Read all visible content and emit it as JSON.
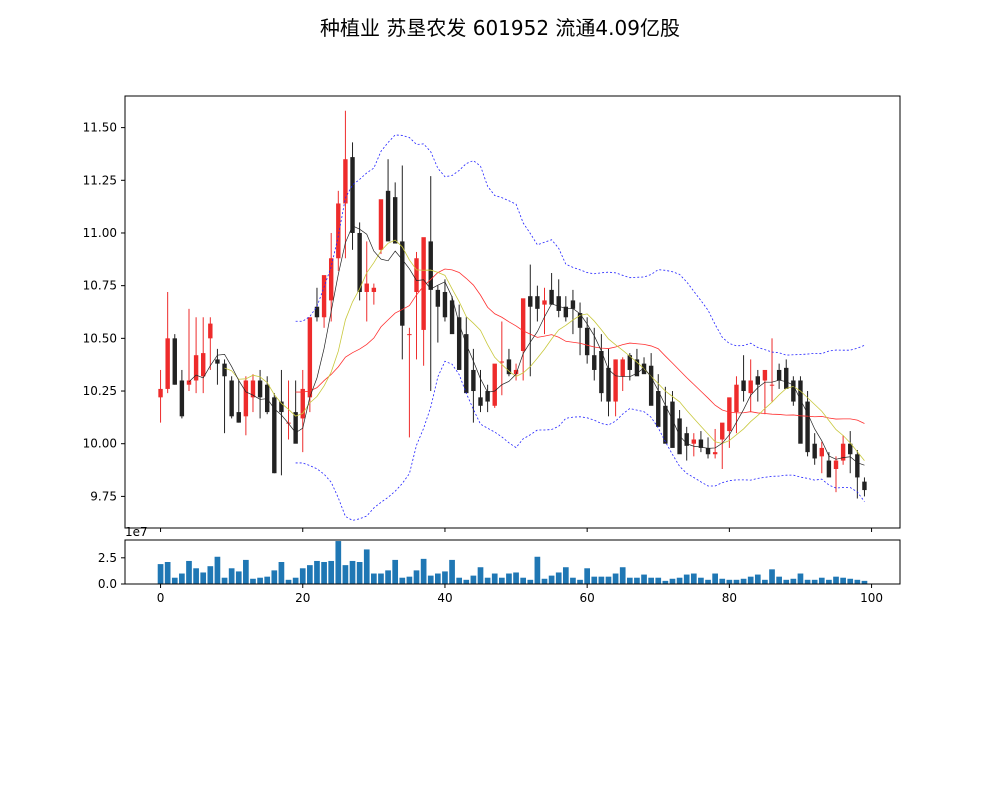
{
  "chart_data": {
    "type": "candlestick",
    "title": "种植业 苏垦农发 601952 流通4.09亿股",
    "colors": {
      "up": "#ee2b2b",
      "down": "#222222",
      "ma5": "#222222",
      "ma10": "#c8c83c",
      "ma20": "#ff3030",
      "boll": "#2222ff",
      "volume": "#1f77b4"
    },
    "price_axis": {
      "ylim": [
        9.6,
        11.65
      ],
      "ticks": [
        9.75,
        10.0,
        10.25,
        10.5,
        10.75,
        11.0,
        11.25,
        11.5
      ],
      "tick_labels": [
        "9.75",
        "10.00",
        "10.25",
        "10.50",
        "10.75",
        "11.00",
        "11.25",
        "11.50"
      ]
    },
    "x_axis": {
      "xlim": [
        -5,
        104
      ],
      "ticks": [
        0,
        20,
        40,
        60,
        80,
        100
      ],
      "tick_labels": [
        "0",
        "20",
        "40",
        "60",
        "80",
        "100"
      ]
    },
    "volume_axis": {
      "ylim": [
        0,
        4.2
      ],
      "ticks": [
        0,
        2.5
      ],
      "tick_labels": [
        "0.0",
        "2.5"
      ],
      "offset_label": "1e7"
    },
    "candles": {
      "open": [
        10.22,
        10.26,
        10.5,
        10.3,
        10.28,
        10.3,
        10.32,
        10.5,
        10.4,
        10.38,
        10.3,
        10.15,
        10.13,
        10.22,
        10.3,
        10.28,
        10.22,
        10.2,
        10.1,
        10.15,
        10.12,
        10.22,
        10.65,
        10.6,
        10.68,
        10.88,
        11.14,
        11.36,
        11.0,
        10.72,
        10.72,
        10.92,
        11.2,
        11.17,
        10.96,
        10.52,
        10.72,
        10.54,
        10.96,
        10.73,
        10.72,
        10.68,
        10.6,
        10.52,
        10.35,
        10.22,
        10.25,
        10.18,
        10.39,
        10.4,
        10.33,
        10.44,
        10.7,
        10.7,
        10.66,
        10.73,
        10.7,
        10.65,
        10.68,
        10.62,
        10.55,
        10.42,
        10.44,
        10.36,
        10.2,
        10.32,
        10.42,
        10.4,
        10.38,
        10.37,
        10.25,
        10.18,
        10.2,
        10.12,
        10.05,
        10.0,
        10.02,
        9.98,
        9.95,
        10.02,
        10.06,
        10.15,
        10.3,
        10.24,
        10.32,
        10.3,
        10.28,
        10.35,
        10.36,
        10.3,
        10.3,
        10.2,
        10.0,
        9.94,
        9.92,
        9.88,
        9.92,
        10.0,
        9.95,
        9.82
      ],
      "high": [
        10.35,
        10.72,
        10.52,
        10.35,
        10.64,
        10.6,
        10.6,
        10.6,
        10.45,
        10.4,
        10.32,
        10.3,
        10.32,
        10.33,
        10.35,
        10.32,
        10.24,
        10.35,
        10.3,
        10.3,
        10.35,
        10.4,
        10.74,
        10.72,
        11.0,
        11.2,
        11.58,
        11.43,
        11.05,
        10.96,
        10.76,
        11.0,
        11.35,
        11.24,
        11.32,
        10.55,
        10.91,
        10.9,
        11.27,
        10.75,
        10.78,
        10.7,
        10.66,
        10.6,
        10.45,
        10.35,
        10.28,
        10.25,
        10.58,
        10.45,
        10.38,
        10.5,
        10.85,
        10.75,
        10.74,
        10.81,
        10.78,
        10.7,
        10.73,
        10.67,
        10.6,
        10.55,
        10.52,
        10.45,
        10.4,
        10.41,
        10.43,
        10.45,
        10.41,
        10.43,
        10.33,
        10.27,
        10.25,
        10.16,
        10.08,
        10.05,
        10.06,
        10.03,
        10.07,
        10.06,
        10.1,
        10.32,
        10.42,
        10.4,
        10.35,
        10.34,
        10.5,
        10.38,
        10.4,
        10.32,
        10.32,
        10.25,
        10.05,
        10.01,
        9.96,
        9.94,
        10.04,
        10.06,
        9.97,
        9.84
      ],
      "low": [
        10.1,
        10.24,
        10.28,
        10.12,
        10.25,
        10.24,
        10.24,
        10.35,
        10.28,
        10.05,
        10.12,
        10.1,
        10.04,
        10.15,
        10.12,
        10.14,
        9.86,
        9.85,
        10.02,
        10.08,
        9.96,
        10.15,
        10.58,
        10.55,
        10.58,
        10.82,
        10.88,
        10.92,
        10.68,
        10.58,
        10.66,
        10.9,
        11.0,
        10.96,
        10.4,
        10.03,
        10.4,
        10.37,
        10.25,
        10.48,
        10.58,
        10.55,
        10.5,
        10.3,
        10.1,
        10.15,
        10.15,
        10.17,
        10.23,
        10.32,
        10.3,
        10.3,
        10.32,
        10.58,
        10.52,
        10.66,
        10.6,
        10.58,
        10.52,
        10.42,
        10.38,
        10.3,
        10.2,
        10.13,
        10.13,
        10.25,
        10.3,
        10.35,
        10.35,
        10.28,
        10.16,
        10.12,
        10.05,
        10.01,
        9.92,
        9.94,
        9.96,
        9.93,
        9.93,
        9.88,
        9.98,
        10.05,
        10.2,
        10.15,
        10.2,
        10.14,
        10.2,
        10.26,
        10.26,
        10.18,
        10.06,
        9.94,
        9.9,
        9.86,
        9.85,
        9.77,
        9.9,
        9.86,
        9.74,
        9.75
      ],
      "close": [
        10.26,
        10.5,
        10.28,
        10.13,
        10.3,
        10.42,
        10.43,
        10.57,
        10.38,
        10.32,
        10.13,
        10.1,
        10.3,
        10.3,
        10.22,
        10.15,
        9.86,
        10.15,
        10.1,
        10.0,
        10.26,
        10.6,
        10.6,
        10.8,
        10.88,
        11.14,
        11.35,
        11.0,
        10.72,
        10.76,
        10.74,
        11.16,
        10.96,
        10.95,
        10.56,
        10.52,
        10.88,
        10.98,
        10.73,
        10.65,
        10.6,
        10.52,
        10.35,
        10.24,
        10.25,
        10.18,
        10.2,
        10.38,
        10.39,
        10.33,
        10.35,
        10.69,
        10.65,
        10.64,
        10.68,
        10.66,
        10.63,
        10.6,
        10.64,
        10.55,
        10.42,
        10.35,
        10.24,
        10.2,
        10.4,
        10.4,
        10.35,
        10.32,
        10.33,
        10.18,
        10.08,
        10.0,
        9.98,
        9.95,
        9.99,
        10.02,
        9.98,
        9.95,
        9.96,
        10.1,
        10.22,
        10.28,
        10.25,
        10.3,
        10.28,
        10.35,
        10.28,
        10.3,
        10.26,
        10.2,
        10.0,
        9.96,
        9.93,
        9.98,
        9.84,
        9.92,
        10.0,
        9.95,
        9.84,
        9.78
      ]
    },
    "volume": [
      1.9,
      2.1,
      0.6,
      1.0,
      2.2,
      1.5,
      1.1,
      1.7,
      2.6,
      0.6,
      1.5,
      1.2,
      2.3,
      0.5,
      0.6,
      0.7,
      1.3,
      2.1,
      0.4,
      0.6,
      1.5,
      1.8,
      2.2,
      2.1,
      2.2,
      4.1,
      1.8,
      2.2,
      2.1,
      3.3,
      1.0,
      1.0,
      1.3,
      2.3,
      0.6,
      0.7,
      1.3,
      2.4,
      0.8,
      1.0,
      1.2,
      2.3,
      0.6,
      0.4,
      0.8,
      1.6,
      0.6,
      1.0,
      0.6,
      1.0,
      1.1,
      0.6,
      0.4,
      2.6,
      0.5,
      0.8,
      1.1,
      1.6,
      0.6,
      0.4,
      1.5,
      0.7,
      0.7,
      0.7,
      1.0,
      1.6,
      0.6,
      0.6,
      0.9,
      0.6,
      0.6,
      0.3,
      0.5,
      0.6,
      0.9,
      1.0,
      0.6,
      0.4,
      1.0,
      0.5,
      0.4,
      0.4,
      0.5,
      0.7,
      0.9,
      0.4,
      1.4,
      0.7,
      0.4,
      0.5,
      1.0,
      0.4,
      0.4,
      0.6,
      0.4,
      0.7,
      0.6,
      0.5,
      0.4,
      0.3
    ]
  }
}
